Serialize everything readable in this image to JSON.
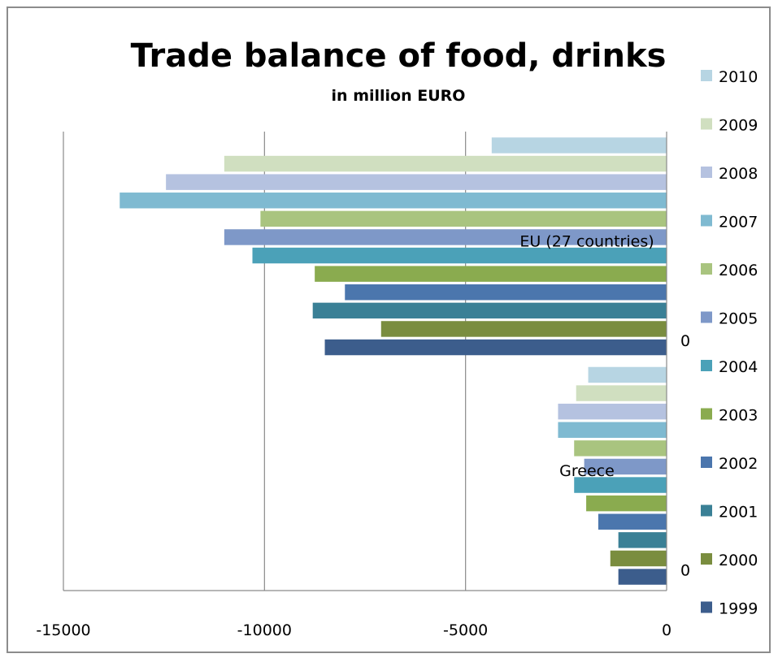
{
  "chart_data": {
    "type": "bar",
    "orientation": "horizontal",
    "title": "Trade balance of food, drinks",
    "subtitle": "in million EURO",
    "xlim": [
      -15000,
      0
    ],
    "x_ticks": [
      "-15000",
      "-10000",
      "-5000",
      "0"
    ],
    "grid": "vertical major gridlines",
    "legend_position": "right",
    "groups": [
      {
        "name": "Greece",
        "zero_label": "0",
        "values": {
          "1999": -1200,
          "2000": -1400,
          "2001": -1200,
          "2002": -1700,
          "2003": -2000,
          "2004": -2300,
          "2005": -2050,
          "2006": -2300,
          "2007": -2700,
          "2008": -2700,
          "2009": -2250,
          "2010": -1950
        }
      },
      {
        "name": "EU (27 countries)",
        "zero_label": "0",
        "values": {
          "1999": -8500,
          "2000": -7100,
          "2001": -8800,
          "2002": -8000,
          "2003": -8750,
          "2004": -10300,
          "2005": -11000,
          "2006": -10100,
          "2007": -13600,
          "2008": -12450,
          "2009": -11000,
          "2010": -4350
        }
      }
    ],
    "series": [
      {
        "name": "2010",
        "color": "#b7d5e3"
      },
      {
        "name": "2009",
        "color": "#d0dfc0"
      },
      {
        "name": "2008",
        "color": "#b5c2e0"
      },
      {
        "name": "2007",
        "color": "#7fbad1"
      },
      {
        "name": "2006",
        "color": "#a9c47f"
      },
      {
        "name": "2005",
        "color": "#7e98c8"
      },
      {
        "name": "2004",
        "color": "#4ba1b8"
      },
      {
        "name": "2003",
        "color": "#8aab4f"
      },
      {
        "name": "2002",
        "color": "#4b76ad"
      },
      {
        "name": "2001",
        "color": "#3a8096"
      },
      {
        "name": "2000",
        "color": "#7a8d3f"
      },
      {
        "name": "1999",
        "color": "#3c5d8c"
      }
    ]
  }
}
